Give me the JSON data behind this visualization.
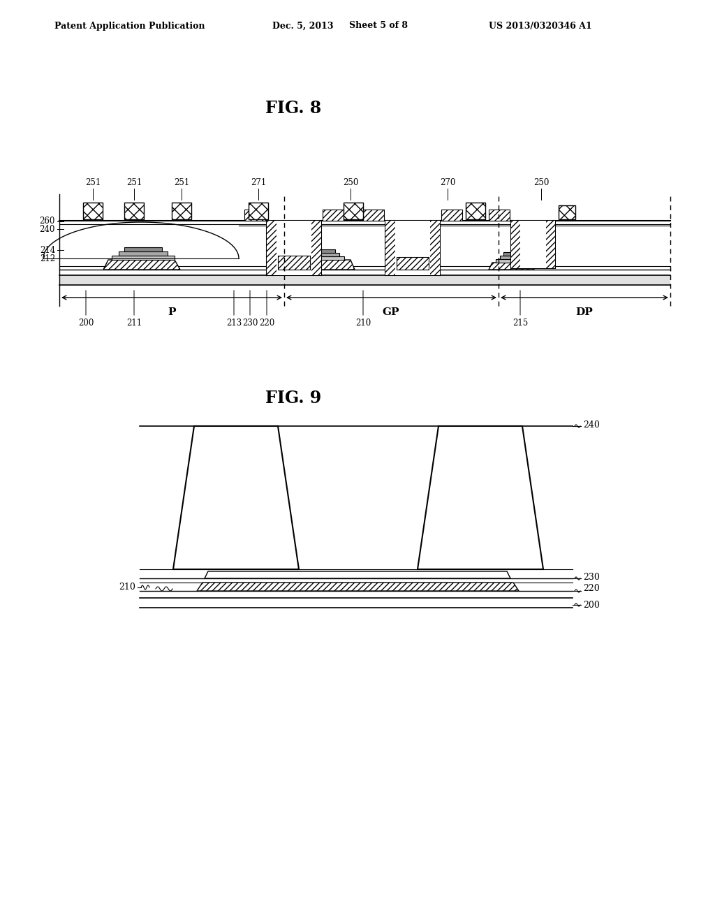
{
  "header_left": "Patent Application Publication",
  "header_mid": "Dec. 5, 2013   Sheet 5 of 8",
  "header_right": "US 2013/0320346 A1",
  "fig8_title": "FIG. 8",
  "fig9_title": "FIG. 9",
  "bg_color": "#ffffff",
  "line_color": "#000000"
}
